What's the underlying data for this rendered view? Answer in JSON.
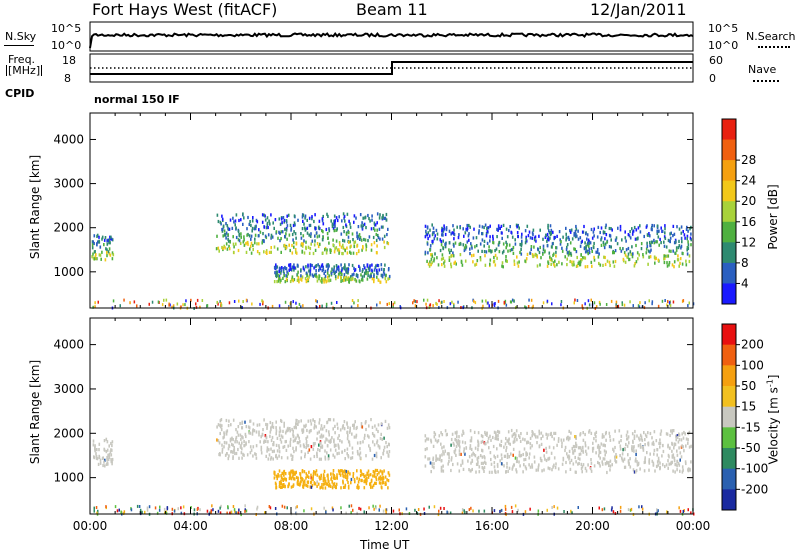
{
  "header": {
    "station": "Fort Hays West (fitACF)",
    "beam": "Beam 11",
    "date": "12/Jan/2011"
  },
  "top_panels": {
    "nsky_label": "N.Sky",
    "nsearch_label": "N.Search",
    "noise_ticks": [
      "10^5",
      "10^0"
    ],
    "freq_label_line1": "Freq.",
    "freq_label_line2": "[MHz]",
    "freq_ticks": [
      "18",
      "8"
    ],
    "nave_label": "Nave",
    "nave_ticks": [
      "60",
      "0"
    ],
    "cpid_label": "CPID",
    "cpid_value": "normal 150 IF"
  },
  "chart_data": [
    {
      "type": "heatmap",
      "name": "power",
      "ylabel": "Slant Range [km]",
      "xlabel": "Time UT",
      "xlim": [
        0,
        24
      ],
      "ylim": [
        180,
        4600
      ],
      "yticks": [
        1000,
        2000,
        3000,
        4000
      ],
      "xticks": [
        "00:00",
        "04:00",
        "08:00",
        "12:00",
        "16:00",
        "20:00",
        "00:00"
      ],
      "colorbar_label": "Power [dB]",
      "colorbar_ticks": [
        4,
        8,
        12,
        16,
        20,
        24,
        28
      ],
      "colorbar_colors": [
        "#1a1aff",
        "#2a5fc0",
        "#2e8a70",
        "#4fb040",
        "#a8d23a",
        "#f2c81a",
        "#f5a010",
        "#f06010",
        "#e82010"
      ],
      "bands": [
        {
          "t0": 0.05,
          "t1": 0.9,
          "r0": 1300,
          "r1": 1900,
          "c": "mixed"
        },
        {
          "t0": 5.0,
          "t1": 11.9,
          "r0": 1450,
          "r1": 2350,
          "c": "mixed"
        },
        {
          "t0": 7.3,
          "t1": 11.9,
          "r0": 800,
          "r1": 1200,
          "c": "mixed"
        },
        {
          "t0": 13.3,
          "t1": 23.9,
          "r0": 1150,
          "r1": 2100,
          "c": "mixed"
        }
      ]
    },
    {
      "type": "heatmap",
      "name": "velocity",
      "ylabel": "Slant Range [km]",
      "xlabel": "Time UT",
      "xlim": [
        0,
        24
      ],
      "ylim": [
        180,
        4600
      ],
      "yticks": [
        1000,
        2000,
        3000,
        4000
      ],
      "xticks": [
        "00:00",
        "04:00",
        "08:00",
        "12:00",
        "16:00",
        "20:00",
        "00:00"
      ],
      "colorbar_label_main": "Velocity",
      "colorbar_label_unit": "[m s",
      "colorbar_label_exp": "-1",
      "colorbar_label_close": "]",
      "colorbar_ticks": [
        "200",
        "100",
        "50",
        "15",
        "-15",
        "-50",
        "-100",
        "-200"
      ],
      "colorbar_colors": [
        "#1a2aa0",
        "#2a60b0",
        "#2e8a60",
        "#5cc040",
        "#c8c8c0",
        "#f2c020",
        "#f5a010",
        "#f06010",
        "#e81010"
      ],
      "bands": [
        {
          "t0": 0.05,
          "t1": 0.9,
          "r0": 1300,
          "r1": 1900,
          "c": "#c8c8c0"
        },
        {
          "t0": 5.0,
          "t1": 11.9,
          "r0": 1450,
          "r1": 2350,
          "c": "#c8c8c0"
        },
        {
          "t0": 7.3,
          "t1": 11.9,
          "r0": 800,
          "r1": 1200,
          "c": "#f5b010"
        },
        {
          "t0": 13.3,
          "t1": 23.9,
          "r0": 1150,
          "r1": 2100,
          "c": "#c8c8c0"
        }
      ]
    }
  ]
}
